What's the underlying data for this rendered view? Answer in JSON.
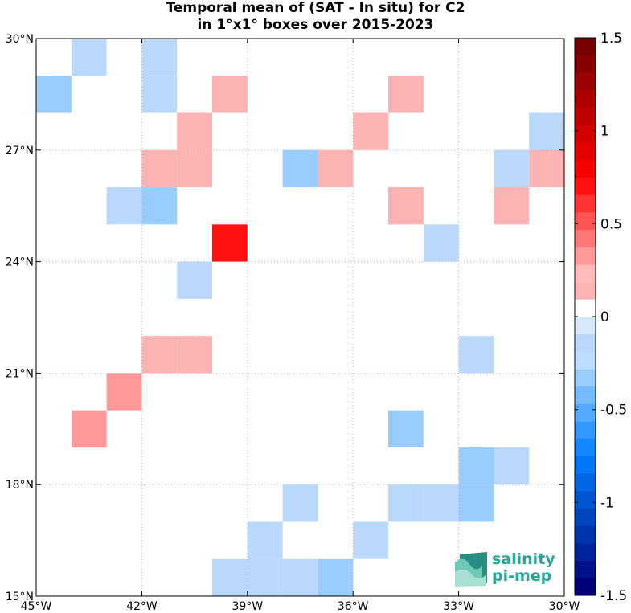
{
  "chart_data": {
    "type": "heatmap",
    "title": "Temporal mean of (SAT - In situ) for C2",
    "subtitle": "in 1°x1° boxes over 2015-2023",
    "xlim": [
      -45,
      -30
    ],
    "ylim": [
      15,
      30
    ],
    "grid": true,
    "x_ticks": [
      {
        "value": -45,
        "label": "45°W"
      },
      {
        "value": -42,
        "label": "42°W"
      },
      {
        "value": -39,
        "label": "39°W"
      },
      {
        "value": -36,
        "label": "36°W"
      },
      {
        "value": -33,
        "label": "33°W"
      },
      {
        "value": -30,
        "label": "30°W"
      }
    ],
    "y_ticks": [
      {
        "value": 15,
        "label": "15°N"
      },
      {
        "value": 18,
        "label": "18°N"
      },
      {
        "value": 21,
        "label": "21°N"
      },
      {
        "value": 24,
        "label": "24°N"
      },
      {
        "value": 27,
        "label": "27°N"
      },
      {
        "value": 30,
        "label": "30°N"
      }
    ],
    "colorbar": {
      "range": [
        -1.5,
        1.5
      ],
      "levels": 32,
      "ticks": [
        {
          "value": 1.5,
          "label": "1.5"
        },
        {
          "value": 1,
          "label": "1"
        },
        {
          "value": 0.5,
          "label": "0.5"
        },
        {
          "value": 0,
          "label": "0"
        },
        {
          "value": -0.5,
          "label": "-0.5"
        },
        {
          "value": -1,
          "label": "-1"
        },
        {
          "value": -1.5,
          "label": "-1.5"
        }
      ]
    },
    "cells": [
      {
        "lon": -44,
        "lat": 29,
        "value": -0.15
      },
      {
        "lon": -42,
        "lat": 29,
        "value": -0.15
      },
      {
        "lon": -45,
        "lat": 28,
        "value": -0.3
      },
      {
        "lon": -42,
        "lat": 28,
        "value": -0.15
      },
      {
        "lon": -40,
        "lat": 28,
        "value": 0.15
      },
      {
        "lon": -35,
        "lat": 28,
        "value": 0.15
      },
      {
        "lon": -41,
        "lat": 27,
        "value": 0.15
      },
      {
        "lon": -36,
        "lat": 27,
        "value": 0.15
      },
      {
        "lon": -31,
        "lat": 27,
        "value": -0.15
      },
      {
        "lon": -42,
        "lat": 26,
        "value": 0.15
      },
      {
        "lon": -41,
        "lat": 26,
        "value": 0.15
      },
      {
        "lon": -38,
        "lat": 26,
        "value": -0.3
      },
      {
        "lon": -37,
        "lat": 26,
        "value": 0.15
      },
      {
        "lon": -32,
        "lat": 26,
        "value": -0.15
      },
      {
        "lon": -31,
        "lat": 26,
        "value": 0.15
      },
      {
        "lon": -43,
        "lat": 25,
        "value": -0.15
      },
      {
        "lon": -42,
        "lat": 25,
        "value": -0.3
      },
      {
        "lon": -35,
        "lat": 25,
        "value": 0.15
      },
      {
        "lon": -32,
        "lat": 25,
        "value": 0.15
      },
      {
        "lon": -34,
        "lat": 24,
        "value": -0.15
      },
      {
        "lon": -40,
        "lat": 24,
        "value": 0.7
      },
      {
        "lon": -41,
        "lat": 23,
        "value": -0.15
      },
      {
        "lon": -42,
        "lat": 21,
        "value": 0.15
      },
      {
        "lon": -41,
        "lat": 21,
        "value": 0.15
      },
      {
        "lon": -33,
        "lat": 21,
        "value": -0.15
      },
      {
        "lon": -43,
        "lat": 20,
        "value": 0.3
      },
      {
        "lon": -44,
        "lat": 19,
        "value": 0.3
      },
      {
        "lon": -35,
        "lat": 19,
        "value": -0.3
      },
      {
        "lon": -33,
        "lat": 18,
        "value": -0.3
      },
      {
        "lon": -32,
        "lat": 18,
        "value": -0.15
      },
      {
        "lon": -38,
        "lat": 17,
        "value": -0.15
      },
      {
        "lon": -35,
        "lat": 17,
        "value": -0.15
      },
      {
        "lon": -34,
        "lat": 17,
        "value": -0.15
      },
      {
        "lon": -33,
        "lat": 17,
        "value": -0.3
      },
      {
        "lon": -39,
        "lat": 16,
        "value": -0.15
      },
      {
        "lon": -36,
        "lat": 16,
        "value": -0.15
      },
      {
        "lon": -40,
        "lat": 15,
        "value": -0.15
      },
      {
        "lon": -39,
        "lat": 15,
        "value": -0.15
      },
      {
        "lon": -38,
        "lat": 15,
        "value": -0.15
      },
      {
        "lon": -37,
        "lat": 15,
        "value": -0.3
      }
    ]
  },
  "logo": {
    "line1": "salinity",
    "line2": "pi-mep"
  }
}
